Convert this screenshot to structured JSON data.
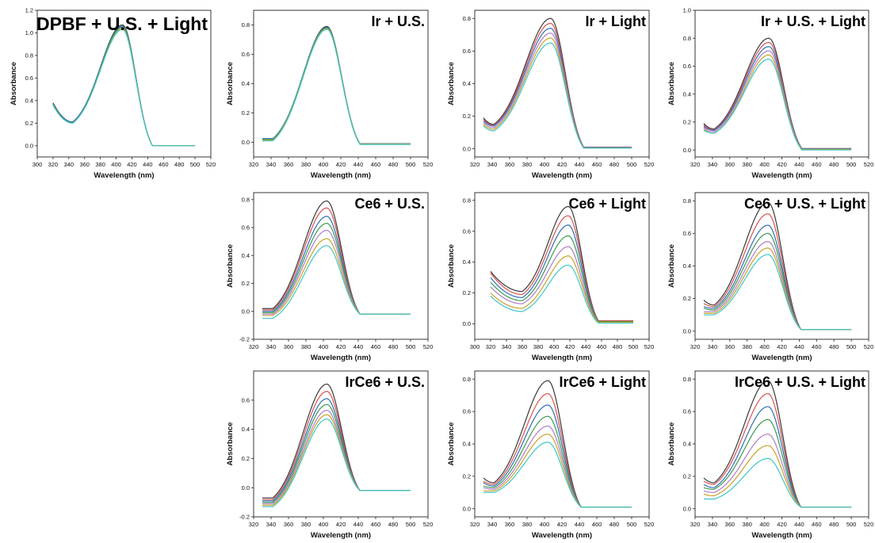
{
  "colors": {
    "series_palette": [
      "#3a3a3a",
      "#d9534f",
      "#2f6db5",
      "#3c9a52",
      "#b07cc6",
      "#c9a227",
      "#3cc6c6"
    ],
    "axis": "#222222"
  },
  "chart_data": [
    {
      "id": "p1",
      "type": "line",
      "title": "DPBF + U.S. + Light",
      "xlabel": "Wavelength (nm)",
      "ylabel": "Absorbance",
      "xlim": [
        300,
        520
      ],
      "ylim": [
        -0.1,
        1.2
      ],
      "xticks": [
        300,
        320,
        340,
        360,
        380,
        400,
        420,
        440,
        460,
        480,
        500,
        520
      ],
      "yticks": [
        0.0,
        0.2,
        0.4,
        0.6,
        0.8,
        1.0,
        1.2
      ],
      "ytick_labels": [
        "0.0",
        "0.2",
        "0.4",
        "0.6",
        "0.8",
        "1.0",
        "1.2"
      ],
      "grid": false,
      "legend": "none",
      "x_range": [
        320,
        500
      ],
      "series": [
        {
          "peak_x": 408,
          "peak": 1.07,
          "near_uv": 0.38,
          "min_x": 345,
          "min": 0.21,
          "tail": 0.0
        },
        {
          "peak_x": 408,
          "peak": 1.06,
          "near_uv": 0.37,
          "min_x": 345,
          "min": 0.21,
          "tail": 0.0
        },
        {
          "peak_x": 408,
          "peak": 1.05,
          "near_uv": 0.37,
          "min_x": 345,
          "min": 0.2,
          "tail": 0.0
        },
        {
          "peak_x": 408,
          "peak": 1.04,
          "near_uv": 0.36,
          "min_x": 345,
          "min": 0.2,
          "tail": 0.0
        },
        {
          "peak_x": 408,
          "peak": 1.03,
          "near_uv": 0.36,
          "min_x": 345,
          "min": 0.2,
          "tail": 0.0
        }
      ]
    },
    {
      "id": "p2",
      "type": "line",
      "title": "Ir + U.S.",
      "xlabel": "Wavelength (nm)",
      "ylabel": "Absorbance",
      "xlim": [
        320,
        520
      ],
      "ylim": [
        -0.1,
        0.9
      ],
      "xticks": [
        320,
        340,
        360,
        380,
        400,
        420,
        440,
        460,
        480,
        500,
        520
      ],
      "yticks": [
        0.0,
        0.2,
        0.4,
        0.6,
        0.8
      ],
      "ytick_labels": [
        "0.0",
        "0.2",
        "0.4",
        "0.6",
        "0.8"
      ],
      "grid": false,
      "legend": "none",
      "x_range": [
        330,
        500
      ],
      "series": [
        {
          "peak_x": 404,
          "peak": 0.79,
          "start": 0.02,
          "tail": -0.01
        },
        {
          "peak_x": 404,
          "peak": 0.785,
          "start": 0.025,
          "tail": -0.01
        },
        {
          "peak_x": 404,
          "peak": 0.78,
          "start": 0.02,
          "tail": -0.012
        },
        {
          "peak_x": 404,
          "peak": 0.775,
          "start": 0.015,
          "tail": -0.012
        },
        {
          "peak_x": 404,
          "peak": 0.77,
          "start": 0.01,
          "tail": -0.015
        }
      ]
    },
    {
      "id": "p3",
      "type": "line",
      "title": "Ir + Light",
      "xlabel": "Wavelength (nm)",
      "ylabel": "Absorbance",
      "xlim": [
        320,
        520
      ],
      "ylim": [
        -0.05,
        0.85
      ],
      "xticks": [
        320,
        340,
        360,
        380,
        400,
        420,
        440,
        460,
        480,
        500,
        520
      ],
      "yticks": [
        0.0,
        0.2,
        0.4,
        0.6,
        0.8
      ],
      "ytick_labels": [
        "0.0",
        "0.2",
        "0.4",
        "0.6",
        "0.8"
      ],
      "grid": false,
      "legend": "none",
      "x_range": [
        330,
        500
      ],
      "series": [
        {
          "peak_x": 407,
          "peak": 0.8,
          "start": 0.19,
          "min": 0.15,
          "tail": 0.01
        },
        {
          "peak_x": 407,
          "peak": 0.77,
          "start": 0.18,
          "min": 0.145,
          "tail": 0.01
        },
        {
          "peak_x": 407,
          "peak": 0.74,
          "start": 0.17,
          "min": 0.14,
          "tail": 0.008
        },
        {
          "peak_x": 407,
          "peak": 0.71,
          "start": 0.16,
          "min": 0.13,
          "tail": 0.006
        },
        {
          "peak_x": 407,
          "peak": 0.68,
          "start": 0.15,
          "min": 0.12,
          "tail": 0.005
        },
        {
          "peak_x": 407,
          "peak": 0.65,
          "start": 0.14,
          "min": 0.11,
          "tail": 0.004
        }
      ]
    },
    {
      "id": "p4",
      "type": "line",
      "title": "Ir + U.S. + Light",
      "xlabel": "Wavelength (nm)",
      "ylabel": "Absorbance",
      "xlim": [
        320,
        520
      ],
      "ylim": [
        -0.05,
        1.0
      ],
      "xticks": [
        320,
        340,
        360,
        380,
        400,
        420,
        440,
        460,
        480,
        500,
        520
      ],
      "yticks": [
        0.0,
        0.2,
        0.4,
        0.6,
        0.8,
        1.0
      ],
      "ytick_labels": [
        "0.0",
        "0.2",
        "0.4",
        "0.6",
        "0.8",
        "1.0"
      ],
      "grid": false,
      "legend": "none",
      "x_range": [
        330,
        500
      ],
      "series": [
        {
          "peak_x": 405,
          "peak": 0.8,
          "start": 0.19,
          "min": 0.15,
          "tail": 0.01
        },
        {
          "peak_x": 405,
          "peak": 0.77,
          "start": 0.18,
          "min": 0.145,
          "tail": 0.01
        },
        {
          "peak_x": 405,
          "peak": 0.74,
          "start": 0.17,
          "min": 0.14,
          "tail": 0.01
        },
        {
          "peak_x": 405,
          "peak": 0.71,
          "start": 0.16,
          "min": 0.13,
          "tail": 0.005
        },
        {
          "peak_x": 405,
          "peak": 0.68,
          "start": 0.15,
          "min": 0.12,
          "tail": 0.005
        },
        {
          "peak_x": 405,
          "peak": 0.65,
          "start": 0.14,
          "min": 0.12,
          "tail": 0.0
        }
      ]
    },
    {
      "id": "p5",
      "type": "line",
      "title": "Ce6 + U.S.",
      "xlabel": "Wavelength (nm)",
      "ylabel": "Absorbance",
      "xlim": [
        320,
        520
      ],
      "ylim": [
        -0.2,
        0.85
      ],
      "xticks": [
        320,
        340,
        360,
        380,
        400,
        420,
        440,
        460,
        480,
        500,
        520
      ],
      "yticks": [
        -0.2,
        0.0,
        0.2,
        0.4,
        0.6,
        0.8
      ],
      "ytick_labels": [
        "-0.2",
        "0.0",
        "0.2",
        "0.4",
        "0.6",
        "0.8"
      ],
      "grid": false,
      "legend": "none",
      "x_range": [
        330,
        500
      ],
      "series": [
        {
          "peak_x": 404,
          "peak": 0.79,
          "start": 0.02,
          "tail": -0.02
        },
        {
          "peak_x": 404,
          "peak": 0.74,
          "start": 0.01,
          "tail": -0.02
        },
        {
          "peak_x": 404,
          "peak": 0.68,
          "start": 0.0,
          "tail": -0.02
        },
        {
          "peak_x": 404,
          "peak": 0.63,
          "start": -0.01,
          "tail": -0.02
        },
        {
          "peak_x": 404,
          "peak": 0.58,
          "start": -0.02,
          "tail": -0.02
        },
        {
          "peak_x": 404,
          "peak": 0.52,
          "start": -0.03,
          "tail": -0.02
        },
        {
          "peak_x": 404,
          "peak": 0.47,
          "start": -0.05,
          "tail": -0.02
        }
      ]
    },
    {
      "id": "p6",
      "type": "line",
      "title": "Ce6 + Light",
      "xlabel": "Wavelength (nm)",
      "ylabel": "Absorbance",
      "xlim": [
        300,
        520
      ],
      "ylim": [
        -0.1,
        0.85
      ],
      "xticks": [
        300,
        320,
        340,
        360,
        380,
        400,
        420,
        440,
        460,
        480,
        500,
        520
      ],
      "yticks": [
        0.0,
        0.2,
        0.4,
        0.6,
        0.8
      ],
      "ytick_labels": [
        "0.0",
        "0.2",
        "0.4",
        "0.6",
        "0.8"
      ],
      "grid": false,
      "legend": "none",
      "x_range": [
        320,
        500
      ],
      "series": [
        {
          "peak_x": 418,
          "peak": 0.76,
          "start": 0.34,
          "min_x": 360,
          "min": 0.21,
          "tail": 0.02
        },
        {
          "peak_x": 418,
          "peak": 0.7,
          "start": 0.33,
          "min_x": 360,
          "min": 0.19,
          "tail": 0.02
        },
        {
          "peak_x": 418,
          "peak": 0.64,
          "start": 0.3,
          "min_x": 360,
          "min": 0.17,
          "tail": 0.015
        },
        {
          "peak_x": 418,
          "peak": 0.57,
          "start": 0.27,
          "min_x": 360,
          "min": 0.15,
          "tail": 0.015
        },
        {
          "peak_x": 418,
          "peak": 0.5,
          "start": 0.24,
          "min_x": 360,
          "min": 0.13,
          "tail": 0.01
        },
        {
          "peak_x": 418,
          "peak": 0.44,
          "start": 0.2,
          "min_x": 360,
          "min": 0.1,
          "tail": 0.01
        },
        {
          "peak_x": 418,
          "peak": 0.38,
          "start": 0.18,
          "min_x": 360,
          "min": 0.08,
          "tail": 0.005
        }
      ]
    },
    {
      "id": "p7",
      "type": "line",
      "title": "Ce6 + U.S. + Light",
      "xlabel": "Wavelength (nm)",
      "ylabel": "Absorbance",
      "xlim": [
        320,
        520
      ],
      "ylim": [
        -0.05,
        0.85
      ],
      "xticks": [
        320,
        340,
        360,
        380,
        400,
        420,
        440,
        460,
        480,
        500,
        520
      ],
      "yticks": [
        0.0,
        0.2,
        0.4,
        0.6,
        0.8
      ],
      "ytick_labels": [
        "0.0",
        "0.2",
        "0.4",
        "0.6",
        "0.8"
      ],
      "grid": false,
      "legend": "none",
      "x_range": [
        330,
        500
      ],
      "series": [
        {
          "peak_x": 404,
          "peak": 0.79,
          "start": 0.19,
          "min": 0.16,
          "tail": 0.01
        },
        {
          "peak_x": 404,
          "peak": 0.72,
          "start": 0.17,
          "min": 0.15,
          "tail": 0.01
        },
        {
          "peak_x": 404,
          "peak": 0.65,
          "start": 0.15,
          "min": 0.14,
          "tail": 0.01
        },
        {
          "peak_x": 404,
          "peak": 0.6,
          "start": 0.14,
          "min": 0.13,
          "tail": 0.01
        },
        {
          "peak_x": 404,
          "peak": 0.55,
          "start": 0.12,
          "min": 0.12,
          "tail": 0.01
        },
        {
          "peak_x": 404,
          "peak": 0.51,
          "start": 0.11,
          "min": 0.11,
          "tail": 0.01
        },
        {
          "peak_x": 404,
          "peak": 0.47,
          "start": 0.1,
          "min": 0.1,
          "tail": 0.01
        }
      ]
    },
    {
      "id": "p8",
      "type": "line",
      "title": "IrCe6 + U.S.",
      "xlabel": "Wavelength (nm)",
      "ylabel": "Absorbance",
      "xlim": [
        320,
        520
      ],
      "ylim": [
        -0.2,
        0.8
      ],
      "xticks": [
        320,
        340,
        360,
        380,
        400,
        420,
        440,
        460,
        480,
        500,
        520
      ],
      "yticks": [
        -0.2,
        0.0,
        0.2,
        0.4,
        0.6
      ],
      "ytick_labels": [
        "-0.2",
        "0.0",
        "0.2",
        "0.4",
        "0.6"
      ],
      "grid": false,
      "legend": "none",
      "x_range": [
        330,
        500
      ],
      "series": [
        {
          "peak_x": 404,
          "peak": 0.71,
          "start": -0.07,
          "tail": -0.02
        },
        {
          "peak_x": 404,
          "peak": 0.66,
          "start": -0.08,
          "tail": -0.02
        },
        {
          "peak_x": 404,
          "peak": 0.61,
          "start": -0.09,
          "tail": -0.02
        },
        {
          "peak_x": 404,
          "peak": 0.57,
          "start": -0.1,
          "tail": -0.02
        },
        {
          "peak_x": 404,
          "peak": 0.53,
          "start": -0.11,
          "tail": -0.02
        },
        {
          "peak_x": 404,
          "peak": 0.5,
          "start": -0.12,
          "tail": -0.02
        },
        {
          "peak_x": 404,
          "peak": 0.47,
          "start": -0.13,
          "tail": -0.02
        }
      ]
    },
    {
      "id": "p9",
      "type": "line",
      "title": "IrCe6 + Light",
      "xlabel": "Wavelength (nm)",
      "ylabel": "Absorbance",
      "xlim": [
        320,
        520
      ],
      "ylim": [
        -0.05,
        0.85
      ],
      "xticks": [
        320,
        340,
        360,
        380,
        400,
        420,
        440,
        460,
        480,
        500,
        520
      ],
      "yticks": [
        0.0,
        0.2,
        0.4,
        0.6,
        0.8
      ],
      "ytick_labels": [
        "0.0",
        "0.2",
        "0.4",
        "0.6",
        "0.8"
      ],
      "grid": false,
      "legend": "none",
      "x_range": [
        330,
        500
      ],
      "series": [
        {
          "peak_x": 404,
          "peak": 0.79,
          "start": 0.19,
          "min": 0.16,
          "tail": 0.01
        },
        {
          "peak_x": 404,
          "peak": 0.71,
          "start": 0.17,
          "min": 0.15,
          "tail": 0.01
        },
        {
          "peak_x": 404,
          "peak": 0.64,
          "start": 0.16,
          "min": 0.14,
          "tail": 0.01
        },
        {
          "peak_x": 404,
          "peak": 0.57,
          "start": 0.14,
          "min": 0.13,
          "tail": 0.01
        },
        {
          "peak_x": 404,
          "peak": 0.51,
          "start": 0.13,
          "min": 0.12,
          "tail": 0.01
        },
        {
          "peak_x": 404,
          "peak": 0.46,
          "start": 0.11,
          "min": 0.11,
          "tail": 0.01
        },
        {
          "peak_x": 404,
          "peak": 0.41,
          "start": 0.1,
          "min": 0.1,
          "tail": 0.01
        }
      ]
    },
    {
      "id": "p10",
      "type": "line",
      "title": "IrCe6 + U.S. + Light",
      "xlabel": "Wavelength (nm)",
      "ylabel": "Absorbance",
      "xlim": [
        320,
        520
      ],
      "ylim": [
        -0.05,
        0.85
      ],
      "xticks": [
        320,
        340,
        360,
        380,
        400,
        420,
        440,
        460,
        480,
        500,
        520
      ],
      "yticks": [
        0.0,
        0.2,
        0.4,
        0.6,
        0.8
      ],
      "ytick_labels": [
        "0.0",
        "0.2",
        "0.4",
        "0.6",
        "0.8"
      ],
      "grid": false,
      "legend": "none",
      "x_range": [
        330,
        500
      ],
      "series": [
        {
          "peak_x": 404,
          "peak": 0.79,
          "start": 0.19,
          "min": 0.16,
          "tail": 0.01
        },
        {
          "peak_x": 404,
          "peak": 0.71,
          "start": 0.17,
          "min": 0.15,
          "tail": 0.01
        },
        {
          "peak_x": 404,
          "peak": 0.63,
          "start": 0.15,
          "min": 0.13,
          "tail": 0.01
        },
        {
          "peak_x": 404,
          "peak": 0.55,
          "start": 0.13,
          "min": 0.12,
          "tail": 0.01
        },
        {
          "peak_x": 404,
          "peak": 0.46,
          "start": 0.11,
          "min": 0.1,
          "tail": 0.01
        },
        {
          "peak_x": 404,
          "peak": 0.39,
          "start": 0.09,
          "min": 0.08,
          "tail": 0.01
        },
        {
          "peak_x": 404,
          "peak": 0.31,
          "start": 0.06,
          "min": 0.06,
          "tail": 0.01
        }
      ]
    }
  ]
}
